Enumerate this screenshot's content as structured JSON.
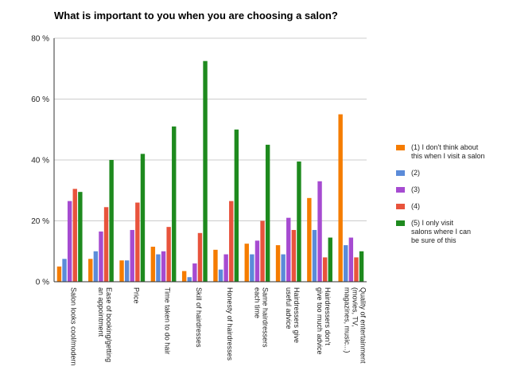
{
  "chart_data": {
    "type": "bar",
    "title": "What is important to you when you are choosing a salon?",
    "xlabel": "",
    "ylabel": "",
    "ylim": [
      0,
      80
    ],
    "yticks": [
      "0 %",
      "20 %",
      "40 %",
      "60 %",
      "80 %"
    ],
    "grid": true,
    "legend_position": "right",
    "categories": [
      [
        "Salon looks cool/modern"
      ],
      [
        "Ease of booking/getting",
        "an appointment"
      ],
      [
        "Price"
      ],
      [
        "Time taken to do hair"
      ],
      [
        "Skill of hairdresses"
      ],
      [
        "Honesty of hairdresses"
      ],
      [
        "Same hairdressers",
        "each time"
      ],
      [
        "Hairdressers give",
        "useful advice"
      ],
      [
        "Hairdressers don't",
        "give too much advice"
      ],
      [
        "Quality of entertainment",
        "(movies, TV,",
        "magazines, music...)"
      ]
    ],
    "series": [
      {
        "name": [
          "(1) I don't think about",
          "this when I visit a salon"
        ],
        "color": "#f57c00",
        "values": [
          5,
          7.5,
          7,
          11.5,
          3.5,
          10.5,
          12.5,
          12,
          27.5,
          55
        ]
      },
      {
        "name": [
          "(2)"
        ],
        "color": "#5b8bd9",
        "values": [
          7.5,
          10,
          7,
          9,
          1.5,
          4,
          9,
          9,
          17,
          12
        ]
      },
      {
        "name": [
          "(3)"
        ],
        "color": "#a64bd1",
        "values": [
          26.5,
          16.5,
          17,
          10,
          6,
          9,
          13.5,
          21,
          33,
          14.5
        ]
      },
      {
        "name": [
          "(4)"
        ],
        "color": "#e8533c",
        "values": [
          30.5,
          24.5,
          26,
          18,
          16,
          26.5,
          20,
          17,
          8,
          8
        ]
      },
      {
        "name": [
          "(5) I only visit",
          "salons where I can",
          "be sure of this"
        ],
        "color": "#1e8a1e",
        "values": [
          29.5,
          40,
          42,
          51,
          72.5,
          50,
          45,
          39.5,
          14.5,
          10
        ]
      }
    ]
  }
}
